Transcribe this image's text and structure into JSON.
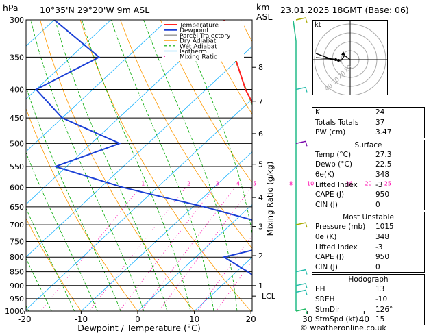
{
  "header": {
    "location": "10°35'N  29°20'W  9m  ASL",
    "datetime": "23.01.2025  18GMT  (Base: 06)",
    "p_unit": "hPa",
    "km_unit": "km",
    "asl_unit": "ASL",
    "kt_label": "kt"
  },
  "legend": [
    "Temperature",
    "Dewpoint",
    "Parcel Trajectory",
    "Dry Adiabat",
    "Wet Adiabat",
    "Isotherm",
    "Mixing Ratio"
  ],
  "axis": {
    "xlabel": "Dewpoint / Temperature (°C)",
    "mixing_ratio_label": "Mixing Ratio (g/kg)",
    "lcl_label": "LCL"
  },
  "colors": {
    "temperature": "#ff2222",
    "dewpoint": "#1a3fd6",
    "parcel": "#a0a0a0",
    "dry_adiabat": "#ff9900",
    "wet_adiabat": "#00aa00",
    "isotherm": "#1eb4ff",
    "mixing_ratio": "#ff00aa",
    "wind": "#aaaa00"
  },
  "chart_data": {
    "type": "skew-t",
    "pressure_levels": [
      300,
      350,
      400,
      450,
      500,
      550,
      600,
      650,
      700,
      750,
      800,
      850,
      900,
      950,
      1000
    ],
    "temperature_ticks": [
      -30,
      -20,
      -10,
      0,
      10,
      20,
      30,
      40
    ],
    "xlim": [
      -30,
      40
    ],
    "km_ticks": [
      1,
      2,
      3,
      4,
      5,
      6,
      7,
      8
    ],
    "mixing_ratio_ticks": [
      "1",
      "2",
      "3",
      "4",
      "5",
      "8",
      "10",
      "16",
      "20",
      "25"
    ],
    "temperature_profile": [
      {
        "p": 1000,
        "t": 27.3
      },
      {
        "p": 950,
        "t": 23.5
      },
      {
        "p": 900,
        "t": 21.5
      },
      {
        "p": 850,
        "t": 18.5
      },
      {
        "p": 800,
        "t": 15.5
      },
      {
        "p": 750,
        "t": 12.5
      },
      {
        "p": 700,
        "t": 9.5
      },
      {
        "p": 650,
        "t": 5.5
      },
      {
        "p": 600,
        "t": 1.5
      },
      {
        "p": 550,
        "t": -3.0
      },
      {
        "p": 500,
        "t": -8.5
      },
      {
        "p": 450,
        "t": -15.0
      },
      {
        "p": 400,
        "t": -23.0
      },
      {
        "p": 350,
        "t": -31.0
      },
      {
        "p": 300,
        "t": -40.0
      }
    ],
    "dewpoint_profile": [
      {
        "p": 1000,
        "t": 22.5
      },
      {
        "p": 950,
        "t": 20.5
      },
      {
        "p": 900,
        "t": 18.0
      },
      {
        "p": 850,
        "t": 12.0
      },
      {
        "p": 800,
        "t": 5.0
      },
      {
        "p": 770,
        "t": 10.0
      },
      {
        "p": 750,
        "t": 9.0
      },
      {
        "p": 700,
        "t": 7.0
      },
      {
        "p": 650,
        "t": -8.0
      },
      {
        "p": 600,
        "t": -26.0
      },
      {
        "p": 550,
        "t": -42.0
      },
      {
        "p": 500,
        "t": -35.0
      },
      {
        "p": 450,
        "t": -50.0
      },
      {
        "p": 400,
        "t": -60.0
      },
      {
        "p": 350,
        "t": -55.0
      },
      {
        "p": 300,
        "t": -70.0
      }
    ],
    "parcel_profile": [
      {
        "p": 1000,
        "t": 27.3
      },
      {
        "p": 960,
        "t": 24.0
      },
      {
        "p": 900,
        "t": 21.7
      },
      {
        "p": 800,
        "t": 17.5
      },
      {
        "p": 700,
        "t": 12.5
      },
      {
        "p": 600,
        "t": 6.5
      },
      {
        "p": 500,
        "t": -2.0
      },
      {
        "p": 400,
        "t": -13.5
      },
      {
        "p": 350,
        "t": -21.0
      },
      {
        "p": 300,
        "t": -30.0
      }
    ]
  },
  "indices": {
    "general": [
      {
        "label": "K",
        "value": "24"
      },
      {
        "label": "Totals Totals",
        "value": "37"
      },
      {
        "label": "PW (cm)",
        "value": "3.47"
      }
    ],
    "surface_title": "Surface",
    "surface": [
      {
        "label": "Temp (°C)",
        "value": "27.3"
      },
      {
        "label": "Dewp (°C)",
        "value": "22.5"
      },
      {
        "label": "θe(K)",
        "value": "348"
      },
      {
        "label": "Lifted Index",
        "value": "-3"
      },
      {
        "label": "CAPE (J)",
        "value": "950"
      },
      {
        "label": "CIN (J)",
        "value": "0"
      }
    ],
    "mu_title": "Most Unstable",
    "most_unstable": [
      {
        "label": "Pressure (mb)",
        "value": "1015"
      },
      {
        "label": "θe (K)",
        "value": "348"
      },
      {
        "label": "Lifted Index",
        "value": "-3"
      },
      {
        "label": "CAPE (J)",
        "value": "950"
      },
      {
        "label": "CIN (J)",
        "value": "0"
      }
    ],
    "hodo_title": "Hodograph",
    "hodograph": [
      {
        "label": "EH",
        "value": "13"
      },
      {
        "label": "SREH",
        "value": "-10"
      },
      {
        "label": "StmDir",
        "value": "126°"
      },
      {
        "label": "StmSpd (kt)",
        "value": "15"
      }
    ]
  },
  "hodo_rings": [
    "10",
    "20",
    "30",
    "40"
  ],
  "footer": "© weatheronline.co.uk"
}
